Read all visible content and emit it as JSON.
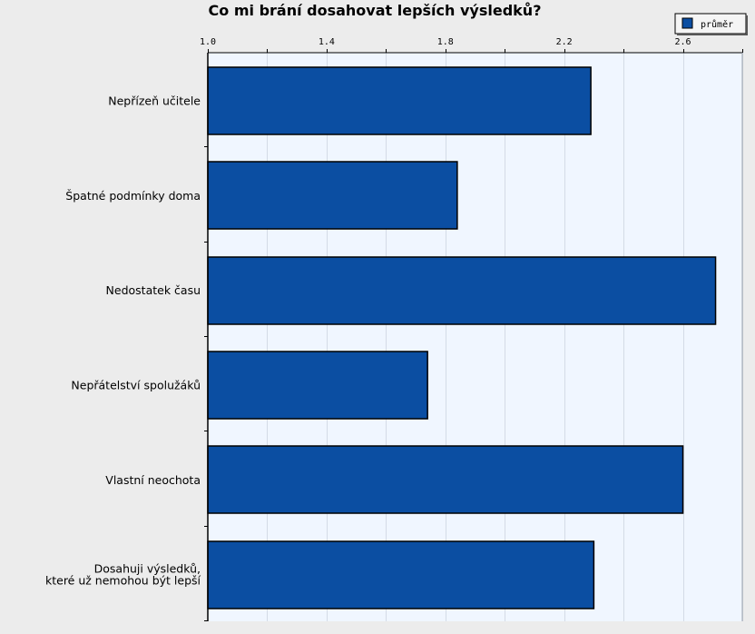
{
  "chart_data": {
    "type": "bar",
    "orientation": "horizontal",
    "title": "Co mi brání dosahovat lepších výsledků?",
    "xlabel": "",
    "ylabel": "",
    "xlim": [
      1.0,
      2.8
    ],
    "xticks": [
      1.0,
      1.4,
      1.8,
      2.2,
      2.6
    ],
    "xtick_labels": [
      "1.0",
      "1.4",
      "1.8",
      "2.2",
      "2.6"
    ],
    "grid": true,
    "legend_position": "top-right",
    "categories": [
      [
        "Nepřízeň učitele"
      ],
      [
        "Špatné podmínky doma"
      ],
      [
        "Nedostatek času"
      ],
      [
        "Nepřátelství spolužáků"
      ],
      [
        "Vlastní neochota"
      ],
      [
        "Dosahuji výsledků,",
        "které už nemohou být lepší"
      ]
    ],
    "series": [
      {
        "name": "průměr",
        "color": "#0b4ea2",
        "values": [
          2.29,
          1.84,
          2.71,
          1.74,
          2.6,
          2.3
        ]
      }
    ]
  },
  "colors": {
    "background": "#ececec",
    "plot_background": "#f0f6ff",
    "grid": "#d4dbe6",
    "bar": "#0b4ea2"
  }
}
